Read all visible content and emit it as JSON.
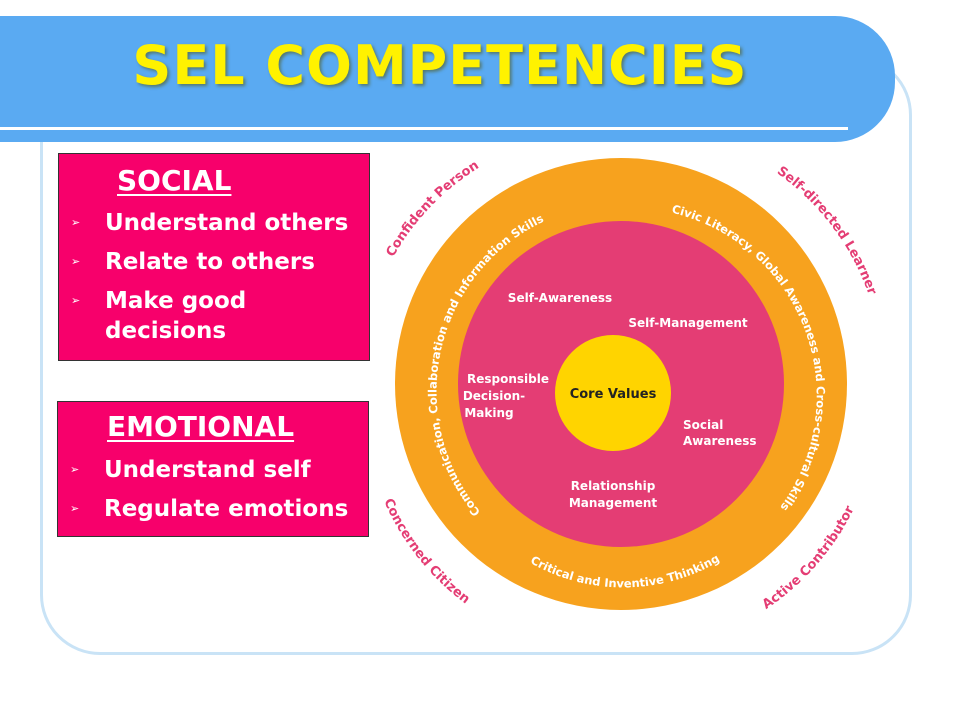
{
  "title": "SEL COMPETENCIES",
  "social": {
    "heading": "SOCIAL",
    "items": [
      "Understand others",
      "Relate to others",
      "Make good decisions"
    ]
  },
  "emotional": {
    "heading": "EMOTIONAL",
    "items": [
      "Understand self",
      "Regulate emotions"
    ]
  },
  "diagram": {
    "center": "Core Values",
    "inner_competencies": {
      "self_awareness": "Self-Awareness",
      "self_management": "Self-Management",
      "responsible_decision_making": [
        "Responsible",
        "Decision-",
        "Making"
      ],
      "social_awareness": [
        "Social",
        "Awareness"
      ],
      "relationship_management": [
        "Relationship",
        "Management"
      ]
    },
    "ring_skills": {
      "left": "Communication, Collaboration and Information Skills",
      "right": "Civic Literacy, Global Awareness and Cross-cultural Skills",
      "bottom": "Critical and Inventive Thinking"
    },
    "outcomes": {
      "top_left": "Confident Person",
      "top_right": "Self-directed Learner",
      "bottom_left": "Concerned Citizen",
      "bottom_right": "Active Contributor"
    }
  },
  "colors": {
    "title_bar": "#5aaaf2",
    "title_text": "#fff200",
    "box_fill": "#f7006b",
    "outer_ring": "#f7a21e",
    "inner_circle": "#e43d74",
    "core": "#ffd400",
    "outcome_text": "#e43d74"
  },
  "icons": {
    "bullet": "arrowhead-bullet-icon"
  }
}
